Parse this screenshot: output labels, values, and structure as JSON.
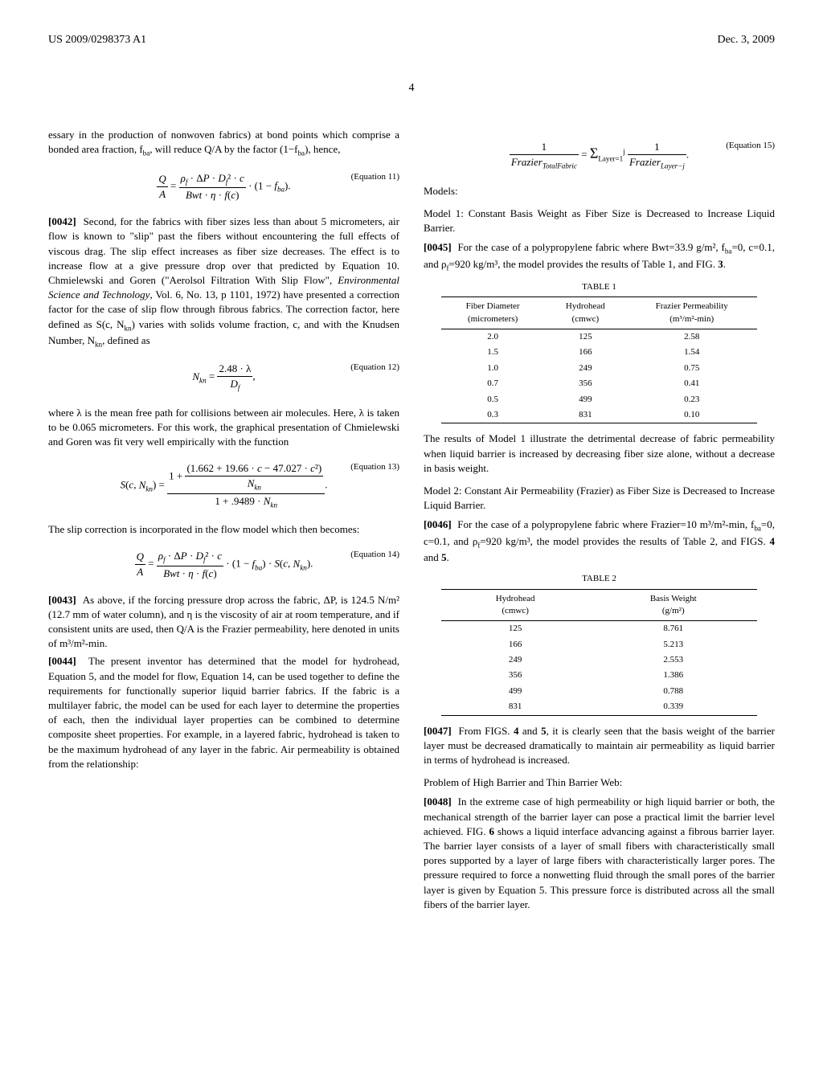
{
  "header": {
    "left": "US 2009/0298373 A1",
    "right": "Dec. 3, 2009"
  },
  "page_number": "4",
  "col1": {
    "intro_text": "essary in the production of nonwoven fabrics) at bond points which comprise a bonded area fraction, f",
    "intro_text2": ", will reduce Q/A by the factor (1−f",
    "intro_text3": "), hence,",
    "eq11_label": "(Equation 11)",
    "p0042_num": "[0042]",
    "p0042_text": "Second, for the fabrics with fiber sizes less than about 5 micrometers, air flow is known to \"slip\" past the fibers without encountering the full effects of viscous drag. The slip effect increases as fiber size decreases. The effect is to increase flow at a give pressure drop over that predicted by Equation 10. Chmielewski and Goren (\"Aerolsol Filtration With Slip Flow\", ",
    "p0042_italic": "Environmental Science and Technology",
    "p0042_text2": ", Vol. 6, No. 13, p 1101, 1972) have presented a correction factor for the case of slip flow through fibrous fabrics. The correction factor, here defined as S(c, N",
    "p0042_text3": ") varies with solids volume fraction, c, and with the Knudsen Number, N",
    "p0042_text4": ", defined as",
    "eq12_label": "(Equation 12)",
    "p_lambda_text": "where λ is the mean free path for collisions between air molecules. Here, λ is taken to be 0.065 micrometers. For this work, the graphical presentation of Chmielewski and Goren was fit very well empirically with the function",
    "eq13_label": "(Equation 13)",
    "p_slip_text": "The slip correction is incorporated in the flow model which then becomes:",
    "eq14_label": "(Equation 14)",
    "p0043_num": "[0043]",
    "p0043_text": "As above, if the forcing pressure drop across the fabric, ΔP, is 124.5 N/m² (12.7 mm of water column), and η is the viscosity of air at room temperature, and if consistent units are used, then Q/A is the Frazier permeability, here denoted in units of m³/m²-min.",
    "p0044_num": "[0044]",
    "p0044_text": "The present inventor has determined that the model for hydrohead, Equation 5, and the model for flow, Equation 14, can be used together to define the requirements for functionally superior liquid barrier fabrics. If the fabric is a multilayer fabric, the model can be used for each layer to determine the properties of each, then the individual layer properties can be combined to determine composite sheet properties. For example, in a layered fabric, hydrohead is taken to be the maximum hydrohead of any layer in the fabric. Air permeability is obtained from the relationship:"
  },
  "col2": {
    "eq15_label": "(Equation 15)",
    "models_title": "Models:",
    "model1_title": "Model 1: Constant Basis Weight as Fiber Size is Decreased to Increase Liquid Barrier.",
    "p0045_num": "[0045]",
    "p0045_text": "For the case of a polypropylene fabric where Bwt=33.9 g/m², f",
    "p0045_text2": "=0, c=0.1, and ρ",
    "p0045_text3": "=920 kg/m³, the model provides the results of Table 1, and FIG. ",
    "p0045_fig": "3",
    "table1": {
      "caption": "TABLE 1",
      "headers": [
        "Fiber Diameter\n(micrometers)",
        "Hydrohead\n(cmwc)",
        "Frazier Permeability\n(m³/m²-min)"
      ],
      "rows": [
        [
          "2.0",
          "125",
          "2.58"
        ],
        [
          "1.5",
          "166",
          "1.54"
        ],
        [
          "1.0",
          "249",
          "0.75"
        ],
        [
          "0.7",
          "356",
          "0.41"
        ],
        [
          "0.5",
          "499",
          "0.23"
        ],
        [
          "0.3",
          "831",
          "0.10"
        ]
      ]
    },
    "p_model1_result": "The results of Model 1 illustrate the detrimental decrease of fabric permeability when liquid barrier is increased by decreasing fiber size alone, without a decrease in basis weight.",
    "model2_title": "Model 2: Constant Air Permeability (Frazier) as Fiber Size is Decreased to Increase Liquid Barrier.",
    "p0046_num": "[0046]",
    "p0046_text": "For the case of a polypropylene fabric where Frazier=10 m³/m²-min, f",
    "p0046_text2": "=0, c=0.1, and ρ",
    "p0046_text3": "=920 kg/m³, the model provides the results of Table 2, and FIGS. ",
    "p0046_fig": "4",
    "p0046_and": " and ",
    "p0046_fig2": "5",
    "table2": {
      "caption": "TABLE 2",
      "headers": [
        "Hydrohead\n(cmwc)",
        "Basis Weight\n(g/m²)"
      ],
      "rows": [
        [
          "125",
          "8.761"
        ],
        [
          "166",
          "5.213"
        ],
        [
          "249",
          "2.553"
        ],
        [
          "356",
          "1.386"
        ],
        [
          "499",
          "0.788"
        ],
        [
          "831",
          "0.339"
        ]
      ]
    },
    "p0047_num": "[0047]",
    "p0047_text": "From FIGS. ",
    "p0047_fig1": "4",
    "p0047_and": " and ",
    "p0047_fig2": "5",
    "p0047_text2": ", it is clearly seen that the basis weight of the barrier layer must be decreased dramatically to maintain air permeability as liquid barrier in terms of hydrohead is increased.",
    "problem_title": "Problem of High Barrier and Thin Barrier Web:",
    "p0048_num": "[0048]",
    "p0048_text": "In the extreme case of high permeability or high liquid barrier or both, the mechanical strength of the barrier layer can pose a practical limit the barrier level achieved. FIG. ",
    "p0048_fig": "6",
    "p0048_text2": " shows a liquid interface advancing against a fibrous barrier layer. The barrier layer consists of a layer of small fibers with characteristically small pores supported by a layer of large fibers with characteristically larger pores. The pressure required to force a nonwetting fluid through the small pores of the barrier layer is given by Equation 5. This pressure force is distributed across all the small fibers of the barrier layer."
  }
}
